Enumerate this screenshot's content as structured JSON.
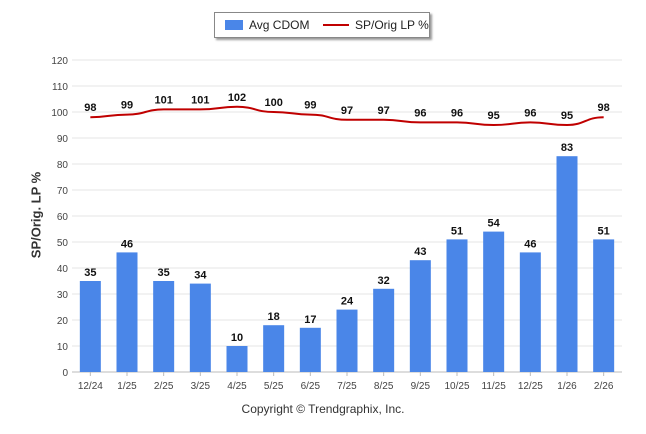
{
  "colors": {
    "bar": "#4a86e8",
    "line": "#c00000",
    "grid": "#e4e4e4",
    "axis": "#bbbbbb"
  },
  "legend": {
    "bar_label": "Avg CDOM",
    "line_label": "SP/Orig LP %",
    "placement": "top-center"
  },
  "footer": {
    "copyright": "Copyright © Trendgraphix, Inc."
  },
  "chart_data": {
    "type": "bar",
    "title": "",
    "xlabel": "",
    "ylabel": "SP/Orig. LP %",
    "ylim": [
      0,
      120
    ],
    "yticks": [
      0,
      10,
      20,
      30,
      40,
      50,
      60,
      70,
      80,
      90,
      100,
      110,
      120
    ],
    "grid": true,
    "categories": [
      "12/24",
      "1/25",
      "2/25",
      "3/25",
      "4/25",
      "5/25",
      "6/25",
      "7/25",
      "8/25",
      "9/25",
      "10/25",
      "11/25",
      "12/25",
      "1/26",
      "2/26"
    ],
    "series": [
      {
        "name": "Avg CDOM",
        "type": "bar",
        "values": [
          35,
          46,
          35,
          34,
          10,
          18,
          17,
          24,
          32,
          43,
          51,
          54,
          46,
          83,
          51
        ]
      },
      {
        "name": "SP/Orig LP %",
        "type": "line",
        "values": [
          98,
          99,
          101,
          101,
          102,
          100,
          99,
          97,
          97,
          96,
          96,
          95,
          96,
          95,
          98
        ]
      }
    ]
  }
}
